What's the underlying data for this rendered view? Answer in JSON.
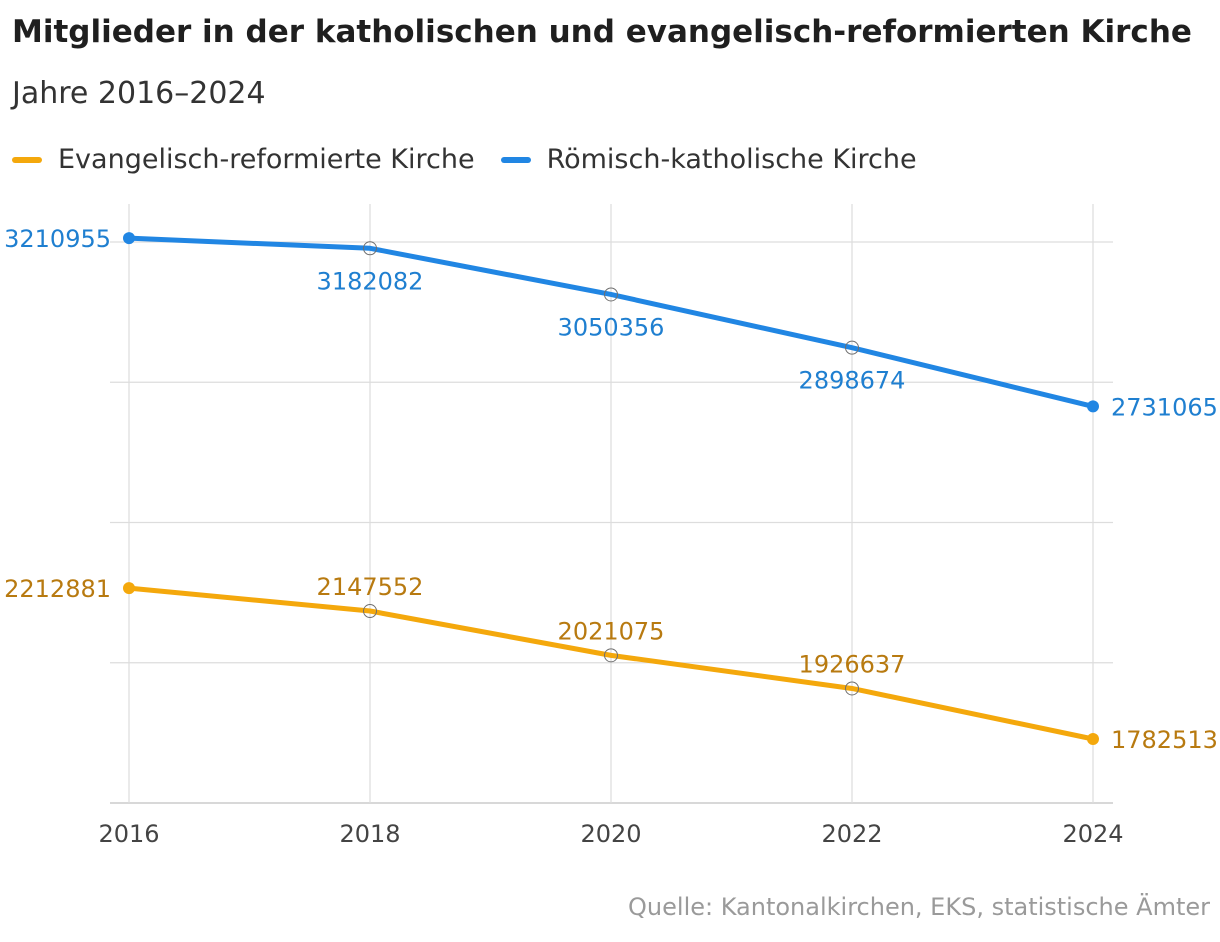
{
  "header": {
    "title": "Mitglieder in der katholischen und evangelisch-reformierten Kirche",
    "subtitle": "Jahre 2016–2024"
  },
  "footer": {
    "source": "Quelle: Kantonalkirchen, EKS, statistische Ämter"
  },
  "colors": {
    "evangelisch": "#f4a80c",
    "katholisch": "#2186e3",
    "evangelisch_label": "#b87a10",
    "katholisch_label": "#1f7fd0",
    "grid": "#dddddd",
    "tick_label": "#444444"
  },
  "chart_data": {
    "type": "line",
    "title": "Mitglieder in der katholischen und evangelisch-reformierten Kirche",
    "subtitle": "Jahre 2016–2024",
    "x": [
      "2016",
      "2018",
      "2020",
      "2022",
      "2024"
    ],
    "xlabel": "",
    "ylabel": "",
    "ylim": [
      1600000,
      3200000
    ],
    "yticks_count": 5,
    "grid": true,
    "legend_position": "top-left",
    "series": [
      {
        "name": "Evangelisch-reformierte Kirche",
        "color_key": "evangelisch",
        "values": [
          2212881,
          2147552,
          2021075,
          1926637,
          1782513
        ],
        "labels": [
          "2212881",
          "2147552",
          "2021075",
          "1926637",
          "1782513"
        ]
      },
      {
        "name": "Römisch-katholische Kirche",
        "color_key": "katholisch",
        "values": [
          3210955,
          3182082,
          3050356,
          2898674,
          2731065
        ],
        "labels": [
          "3210955",
          "3182082",
          "3050356",
          "2898674",
          "2731065"
        ]
      }
    ]
  }
}
